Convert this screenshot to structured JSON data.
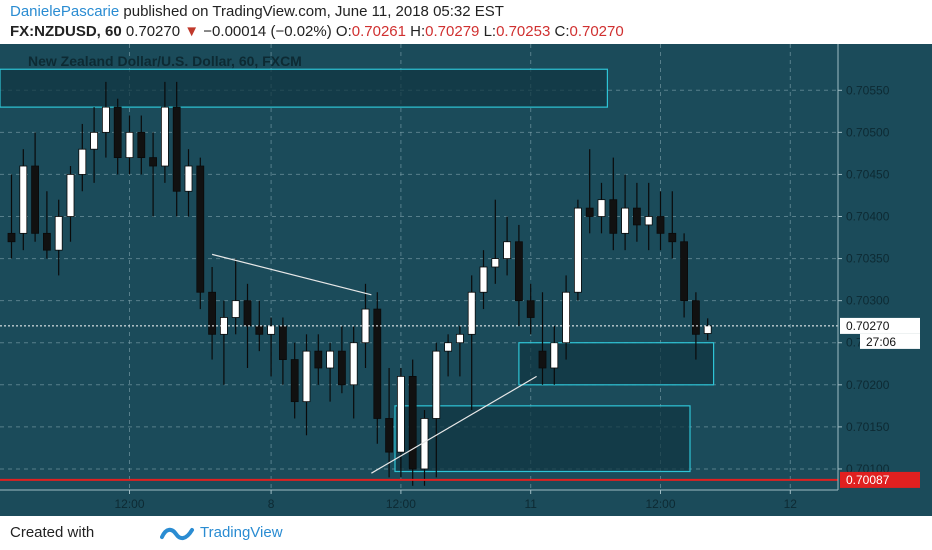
{
  "header": {
    "author": "DanielePascarie",
    "published_text": "published on TradingView.com, June 11, 2018 05:32 EST",
    "symbol_interval": "FX:NZDUSD, 60",
    "last_price": "0.70270",
    "change_arrow": "▼",
    "change_text": "−0.00014 (−0.02%)",
    "o_label": "O:",
    "o_value": "0.70261",
    "h_label": "H:",
    "h_value": "0.70279",
    "l_label": "L:",
    "l_value": "0.70253",
    "c_label": "C:",
    "c_value": "0.70270"
  },
  "footer": {
    "created_with": "Created with",
    "brand": "TradingView"
  },
  "colors": {
    "background": "#1b4b5a",
    "grid": "#7fa3ad",
    "candle_up": "#ffffff",
    "candle_down": "#111111",
    "zone_border": "#2ec4d6",
    "support_line": "#e02020",
    "trend_line": "#e8e8e8"
  },
  "chart_data": {
    "type": "candlestick",
    "title": "New Zealand Dollar/U.S. Dollar, 60, FXCM",
    "ylim": [
      0.70075,
      0.70605
    ],
    "y_ticks": [
      "0.70550",
      "0.70500",
      "0.70450",
      "0.70400",
      "0.70350",
      "0.70300",
      "0.70250",
      "0.70200",
      "0.70150",
      "0.70100"
    ],
    "y_tick_values": [
      0.7055,
      0.705,
      0.7045,
      0.704,
      0.7035,
      0.703,
      0.7025,
      0.702,
      0.7015,
      0.701
    ],
    "x_ticks": [
      {
        "label": "12:00",
        "bar": 10
      },
      {
        "label": "8",
        "bar": 22
      },
      {
        "label": "12:00",
        "bar": 33
      },
      {
        "label": "11",
        "bar": 44
      },
      {
        "label": "12:00",
        "bar": 55
      },
      {
        "label": "12",
        "bar": 66
      }
    ],
    "last_price_label": "0.70270",
    "countdown_label": "27:06",
    "support_level_label": "0.70087",
    "support_level": 0.70087,
    "zones": [
      {
        "bar_start": -1,
        "bar_end": 50.5,
        "high": 0.70575,
        "low": 0.7053
      },
      {
        "bar_start": 43,
        "bar_end": 59.5,
        "high": 0.7025,
        "low": 0.702
      },
      {
        "bar_start": 32.5,
        "bar_end": 57.5,
        "high": 0.70175,
        "low": 0.70097
      }
    ],
    "trend_lines": [
      {
        "bar1": 17,
        "price1": 0.70355,
        "bar2": 30.5,
        "price2": 0.70307
      },
      {
        "bar1": 30.5,
        "price1": 0.70095,
        "bar2": 44.5,
        "price2": 0.7021
      }
    ],
    "candles": [
      {
        "o": 0.7038,
        "h": 0.7045,
        "l": 0.7035,
        "c": 0.7037
      },
      {
        "o": 0.7038,
        "h": 0.7048,
        "l": 0.7036,
        "c": 0.7046
      },
      {
        "o": 0.7046,
        "h": 0.705,
        "l": 0.7037,
        "c": 0.7038
      },
      {
        "o": 0.7038,
        "h": 0.7043,
        "l": 0.7035,
        "c": 0.7036
      },
      {
        "o": 0.7036,
        "h": 0.7042,
        "l": 0.7033,
        "c": 0.704
      },
      {
        "o": 0.704,
        "h": 0.7046,
        "l": 0.7037,
        "c": 0.7045
      },
      {
        "o": 0.7045,
        "h": 0.7051,
        "l": 0.7043,
        "c": 0.7048
      },
      {
        "o": 0.7048,
        "h": 0.7053,
        "l": 0.7044,
        "c": 0.705
      },
      {
        "o": 0.705,
        "h": 0.7056,
        "l": 0.7047,
        "c": 0.7053
      },
      {
        "o": 0.7053,
        "h": 0.7054,
        "l": 0.7045,
        "c": 0.7047
      },
      {
        "o": 0.7047,
        "h": 0.7052,
        "l": 0.7045,
        "c": 0.705
      },
      {
        "o": 0.705,
        "h": 0.7052,
        "l": 0.7045,
        "c": 0.7047
      },
      {
        "o": 0.7047,
        "h": 0.705,
        "l": 0.704,
        "c": 0.7046
      },
      {
        "o": 0.7046,
        "h": 0.7056,
        "l": 0.7044,
        "c": 0.7053
      },
      {
        "o": 0.7053,
        "h": 0.7056,
        "l": 0.704,
        "c": 0.7043
      },
      {
        "o": 0.7043,
        "h": 0.7048,
        "l": 0.704,
        "c": 0.7046
      },
      {
        "o": 0.7046,
        "h": 0.7047,
        "l": 0.7029,
        "c": 0.7031
      },
      {
        "o": 0.7031,
        "h": 0.7034,
        "l": 0.7023,
        "c": 0.7026
      },
      {
        "o": 0.7026,
        "h": 0.703,
        "l": 0.702,
        "c": 0.7028
      },
      {
        "o": 0.7028,
        "h": 0.7035,
        "l": 0.7026,
        "c": 0.703
      },
      {
        "o": 0.703,
        "h": 0.7032,
        "l": 0.7022,
        "c": 0.7027
      },
      {
        "o": 0.7027,
        "h": 0.703,
        "l": 0.7024,
        "c": 0.7026
      },
      {
        "o": 0.7026,
        "h": 0.7028,
        "l": 0.7021,
        "c": 0.7027
      },
      {
        "o": 0.7027,
        "h": 0.7028,
        "l": 0.702,
        "c": 0.7023
      },
      {
        "o": 0.7023,
        "h": 0.7025,
        "l": 0.7016,
        "c": 0.7018
      },
      {
        "o": 0.7018,
        "h": 0.7026,
        "l": 0.7014,
        "c": 0.7024
      },
      {
        "o": 0.7024,
        "h": 0.7026,
        "l": 0.702,
        "c": 0.7022
      },
      {
        "o": 0.7022,
        "h": 0.7025,
        "l": 0.7018,
        "c": 0.7024
      },
      {
        "o": 0.7024,
        "h": 0.7027,
        "l": 0.7019,
        "c": 0.702
      },
      {
        "o": 0.702,
        "h": 0.7027,
        "l": 0.7016,
        "c": 0.7025
      },
      {
        "o": 0.7025,
        "h": 0.7032,
        "l": 0.7022,
        "c": 0.7029
      },
      {
        "o": 0.7029,
        "h": 0.7031,
        "l": 0.7013,
        "c": 0.7016
      },
      {
        "o": 0.7016,
        "h": 0.7022,
        "l": 0.7009,
        "c": 0.7012
      },
      {
        "o": 0.7012,
        "h": 0.7022,
        "l": 0.7009,
        "c": 0.7021
      },
      {
        "o": 0.7021,
        "h": 0.7023,
        "l": 0.7008,
        "c": 0.701
      },
      {
        "o": 0.701,
        "h": 0.7017,
        "l": 0.7008,
        "c": 0.7016
      },
      {
        "o": 0.7016,
        "h": 0.7025,
        "l": 0.7009,
        "c": 0.7024
      },
      {
        "o": 0.7024,
        "h": 0.7026,
        "l": 0.7021,
        "c": 0.7025
      },
      {
        "o": 0.7025,
        "h": 0.7027,
        "l": 0.7021,
        "c": 0.7026
      },
      {
        "o": 0.7026,
        "h": 0.7033,
        "l": 0.7017,
        "c": 0.7031
      },
      {
        "o": 0.7031,
        "h": 0.7036,
        "l": 0.7029,
        "c": 0.7034
      },
      {
        "o": 0.7034,
        "h": 0.7042,
        "l": 0.7032,
        "c": 0.7035
      },
      {
        "o": 0.7035,
        "h": 0.704,
        "l": 0.7033,
        "c": 0.7037
      },
      {
        "o": 0.7037,
        "h": 0.7039,
        "l": 0.7027,
        "c": 0.703
      },
      {
        "o": 0.703,
        "h": 0.7032,
        "l": 0.7026,
        "c": 0.7028
      },
      {
        "o": 0.7024,
        "h": 0.7031,
        "l": 0.702,
        "c": 0.7022
      },
      {
        "o": 0.7022,
        "h": 0.7027,
        "l": 0.702,
        "c": 0.7025
      },
      {
        "o": 0.7025,
        "h": 0.7033,
        "l": 0.7023,
        "c": 0.7031
      },
      {
        "o": 0.7031,
        "h": 0.7042,
        "l": 0.703,
        "c": 0.7041
      },
      {
        "o": 0.7041,
        "h": 0.7048,
        "l": 0.7038,
        "c": 0.704
      },
      {
        "o": 0.704,
        "h": 0.7044,
        "l": 0.7038,
        "c": 0.7042
      },
      {
        "o": 0.7042,
        "h": 0.7047,
        "l": 0.7036,
        "c": 0.7038
      },
      {
        "o": 0.7038,
        "h": 0.7045,
        "l": 0.7036,
        "c": 0.7041
      },
      {
        "o": 0.7041,
        "h": 0.7044,
        "l": 0.7037,
        "c": 0.7039
      },
      {
        "o": 0.7039,
        "h": 0.7044,
        "l": 0.7036,
        "c": 0.704
      },
      {
        "o": 0.704,
        "h": 0.7043,
        "l": 0.7036,
        "c": 0.7038
      },
      {
        "o": 0.7038,
        "h": 0.7043,
        "l": 0.7035,
        "c": 0.7037
      },
      {
        "o": 0.7037,
        "h": 0.7038,
        "l": 0.7028,
        "c": 0.703
      },
      {
        "o": 0.703,
        "h": 0.7031,
        "l": 0.7023,
        "c": 0.7026
      },
      {
        "o": 0.70261,
        "h": 0.70279,
        "l": 0.70253,
        "c": 0.7027
      }
    ]
  }
}
